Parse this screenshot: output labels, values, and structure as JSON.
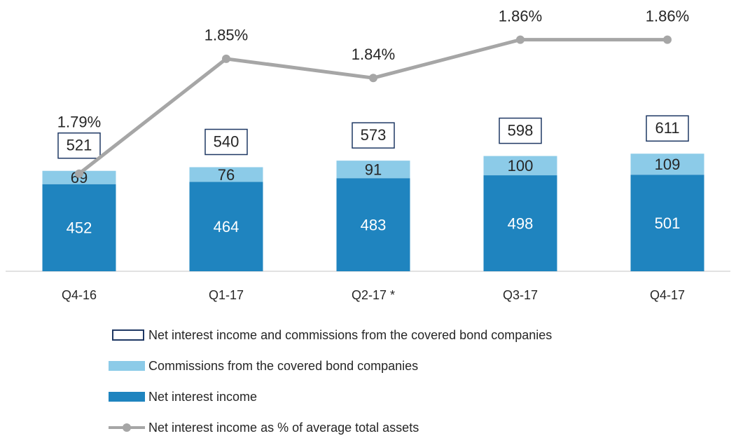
{
  "chart_data": {
    "type": "bar",
    "stacked": true,
    "categories": [
      "Q4-16",
      "Q1-17",
      "Q2-17 *",
      "Q3-17",
      "Q4-17"
    ],
    "ylim": [
      0,
      1400
    ],
    "y2lim": [
      1.739,
      1.88
    ],
    "series": [
      {
        "name": "Net interest income",
        "color": "#1f84bf",
        "values": [
          452,
          464,
          483,
          498,
          501
        ]
      },
      {
        "name": "Commissions from the covered bond companies",
        "color": "#8ccbe8",
        "values": [
          69,
          76,
          91,
          100,
          109
        ]
      },
      {
        "name": "Net interest income and commissions from the covered bond companies",
        "type": "total",
        "color": "#1f3864",
        "values": [
          521,
          540,
          573,
          598,
          611
        ]
      },
      {
        "name": "Net interest income as % of average total assets",
        "type": "line",
        "axis": "y2",
        "color": "#a6a6a6",
        "values": [
          1.79,
          1.85,
          1.84,
          1.86,
          1.86
        ],
        "value_labels": [
          "1.79%",
          "1.85%",
          "1.84%",
          "1.86%",
          "1.86%"
        ]
      }
    ]
  }
}
